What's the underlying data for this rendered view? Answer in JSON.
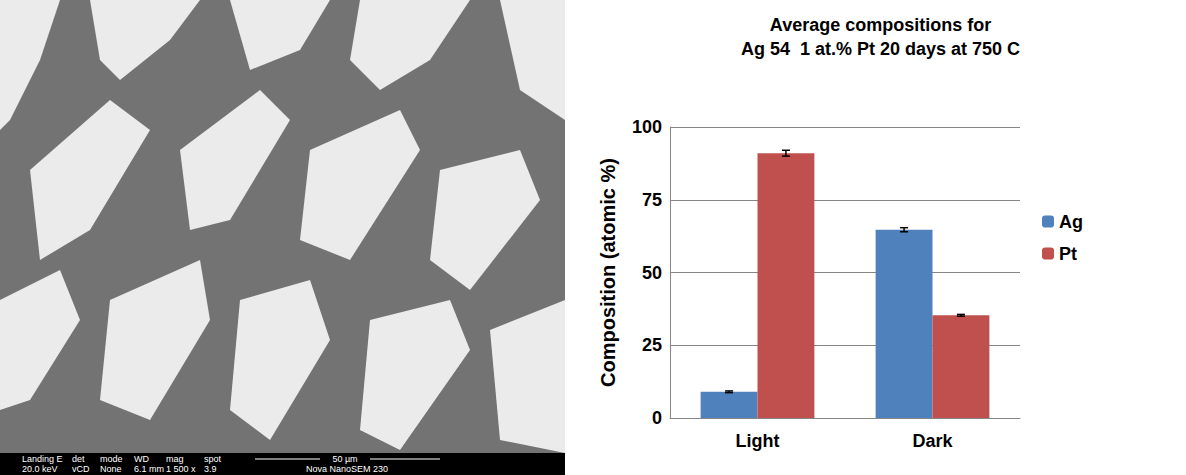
{
  "micrograph": {
    "info_bar": [
      {
        "label": "Landing E",
        "value": "20.0 keV"
      },
      {
        "label": "det",
        "value": "vCD"
      },
      {
        "label": "mode",
        "value": "None"
      },
      {
        "label": "WD",
        "value": "6.1 mm"
      },
      {
        "label": "mag",
        "value": "1 500 x"
      },
      {
        "label": "spot",
        "value": "3.9"
      }
    ],
    "scale_bar": "50 µm",
    "instrument": "Nova NanoSEM 230"
  },
  "chart_data": {
    "type": "bar",
    "title": "Average compositions for\nAg 54  1 at.% Pt 20 days at 750 C",
    "y_label": "Composition (atomic %)",
    "categories": [
      "Light",
      "Dark"
    ],
    "series": [
      {
        "name": "Ag",
        "color": "#4F81BD",
        "values": [
          9,
          64.7
        ],
        "errors": [
          0.3,
          0.7
        ]
      },
      {
        "name": "Pt",
        "color": "#C0504D",
        "values": [
          91,
          35.3
        ],
        "errors": [
          1.0,
          0.3
        ]
      }
    ],
    "ylim": [
      0,
      100
    ],
    "yticks": [
      0,
      25,
      50,
      75,
      100
    ],
    "grid": true,
    "legend": "right"
  }
}
